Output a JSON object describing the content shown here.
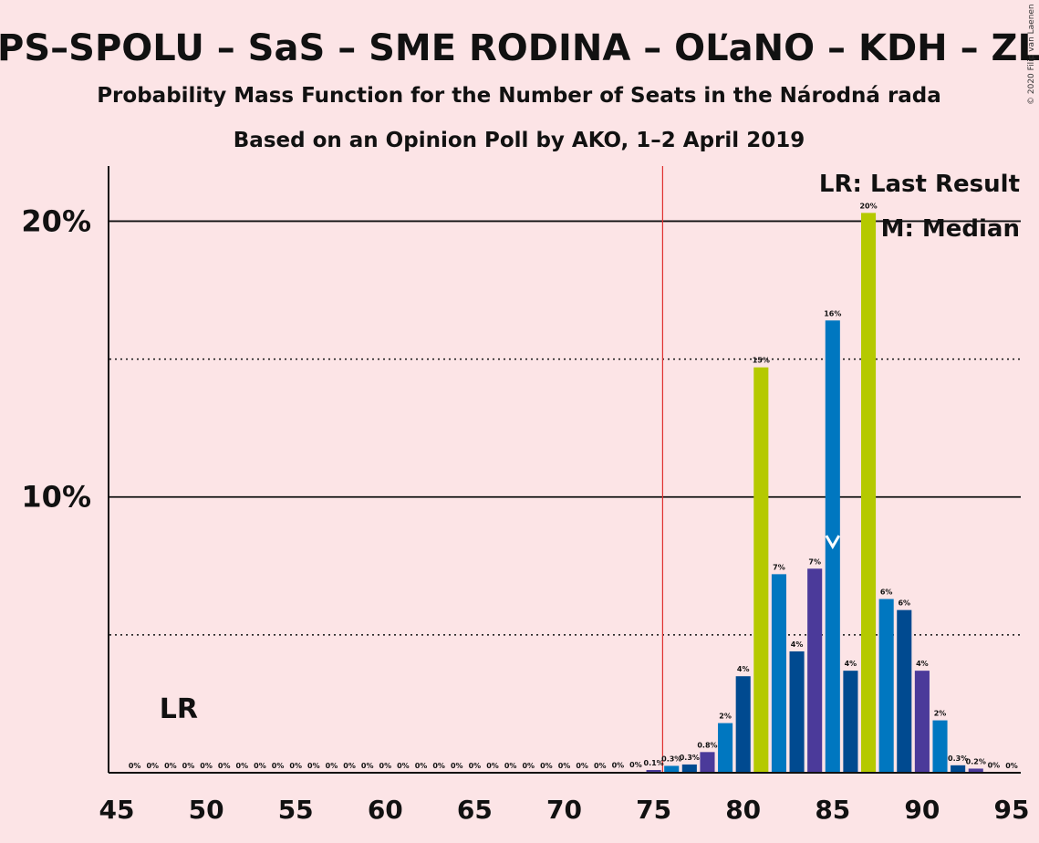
{
  "chart_data": {
    "type": "bar",
    "title": "PS–SPOLU – SaS – SME RODINA – OĽaNO – KDH – ZL",
    "subtitle_1": "Probability Mass Function for the Number of Seats in the Národná rada",
    "subtitle_2": "Based on an Opinion Poll by AKO, 1–2 April 2019",
    "copyright": "© 2020 Filip van Laenen",
    "xlim": [
      45,
      95
    ],
    "ylim": [
      0,
      22
    ],
    "x_ticks": [
      "45",
      "50",
      "55",
      "60",
      "65",
      "70",
      "75",
      "80",
      "85",
      "90",
      "95"
    ],
    "y_ticks": [
      {
        "value": 10,
        "label": "10%"
      },
      {
        "value": 20,
        "label": "20%"
      }
    ],
    "dotted_gridlines": [
      5,
      15
    ],
    "majority_line": 76,
    "last_result": {
      "seat": 48,
      "label": "LR"
    },
    "median": {
      "seat": 85,
      "label": "M"
    },
    "legend": {
      "placement": "top-right",
      "lr": "LR: Last Result",
      "m": "M: Median"
    },
    "colors": {
      "background": "#fce4e6",
      "majority": "#e03030",
      "green": "#b5c900",
      "cycle": [
        "#0077c0",
        "#004a90",
        "#4b3a9a"
      ]
    },
    "bars": [
      {
        "x": 46,
        "value": 0,
        "label": "0%"
      },
      {
        "x": 47,
        "value": 0,
        "label": "0%"
      },
      {
        "x": 48,
        "value": 0,
        "label": "0%"
      },
      {
        "x": 49,
        "value": 0,
        "label": "0%"
      },
      {
        "x": 50,
        "value": 0,
        "label": "0%"
      },
      {
        "x": 51,
        "value": 0,
        "label": "0%"
      },
      {
        "x": 52,
        "value": 0,
        "label": "0%"
      },
      {
        "x": 53,
        "value": 0,
        "label": "0%"
      },
      {
        "x": 54,
        "value": 0,
        "label": "0%"
      },
      {
        "x": 55,
        "value": 0,
        "label": "0%"
      },
      {
        "x": 56,
        "value": 0,
        "label": "0%"
      },
      {
        "x": 57,
        "value": 0,
        "label": "0%"
      },
      {
        "x": 58,
        "value": 0,
        "label": "0%"
      },
      {
        "x": 59,
        "value": 0,
        "label": "0%"
      },
      {
        "x": 60,
        "value": 0,
        "label": "0%"
      },
      {
        "x": 61,
        "value": 0,
        "label": "0%"
      },
      {
        "x": 62,
        "value": 0,
        "label": "0%"
      },
      {
        "x": 63,
        "value": 0,
        "label": "0%"
      },
      {
        "x": 64,
        "value": 0,
        "label": "0%"
      },
      {
        "x": 65,
        "value": 0,
        "label": "0%"
      },
      {
        "x": 66,
        "value": 0,
        "label": "0%"
      },
      {
        "x": 67,
        "value": 0,
        "label": "0%"
      },
      {
        "x": 68,
        "value": 0,
        "label": "0%"
      },
      {
        "x": 69,
        "value": 0,
        "label": "0%"
      },
      {
        "x": 70,
        "value": 0,
        "label": "0%"
      },
      {
        "x": 71,
        "value": 0,
        "label": "0%"
      },
      {
        "x": 72,
        "value": 0,
        "label": "0%"
      },
      {
        "x": 73,
        "value": 0.01,
        "label": "0%"
      },
      {
        "x": 74,
        "value": 0.03,
        "label": "0%"
      },
      {
        "x": 75,
        "value": 0.1,
        "label": "0.1%"
      },
      {
        "x": 76,
        "value": 0.25,
        "label": "0.3%"
      },
      {
        "x": 77,
        "value": 0.3,
        "label": "0.3%"
      },
      {
        "x": 78,
        "value": 0.75,
        "label": "0.8%"
      },
      {
        "x": 79,
        "value": 1.8,
        "label": "2%"
      },
      {
        "x": 80,
        "value": 3.5,
        "label": "4%"
      },
      {
        "x": 81,
        "value": 14.7,
        "label": "15%"
      },
      {
        "x": 82,
        "value": 7.2,
        "label": "7%"
      },
      {
        "x": 83,
        "value": 4.4,
        "label": "4%"
      },
      {
        "x": 84,
        "value": 7.4,
        "label": "7%"
      },
      {
        "x": 85,
        "value": 16.4,
        "label": "16%"
      },
      {
        "x": 86,
        "value": 3.7,
        "label": "4%"
      },
      {
        "x": 87,
        "value": 20.3,
        "label": "20%"
      },
      {
        "x": 88,
        "value": 6.3,
        "label": "6%"
      },
      {
        "x": 89,
        "value": 5.9,
        "label": "6%"
      },
      {
        "x": 90,
        "value": 3.7,
        "label": "4%"
      },
      {
        "x": 91,
        "value": 1.9,
        "label": "2%"
      },
      {
        "x": 92,
        "value": 0.27,
        "label": "0.3%"
      },
      {
        "x": 93,
        "value": 0.15,
        "label": "0.2%"
      },
      {
        "x": 94,
        "value": 0.02,
        "label": "0%"
      },
      {
        "x": 95,
        "value": 0,
        "label": "0%"
      }
    ]
  }
}
